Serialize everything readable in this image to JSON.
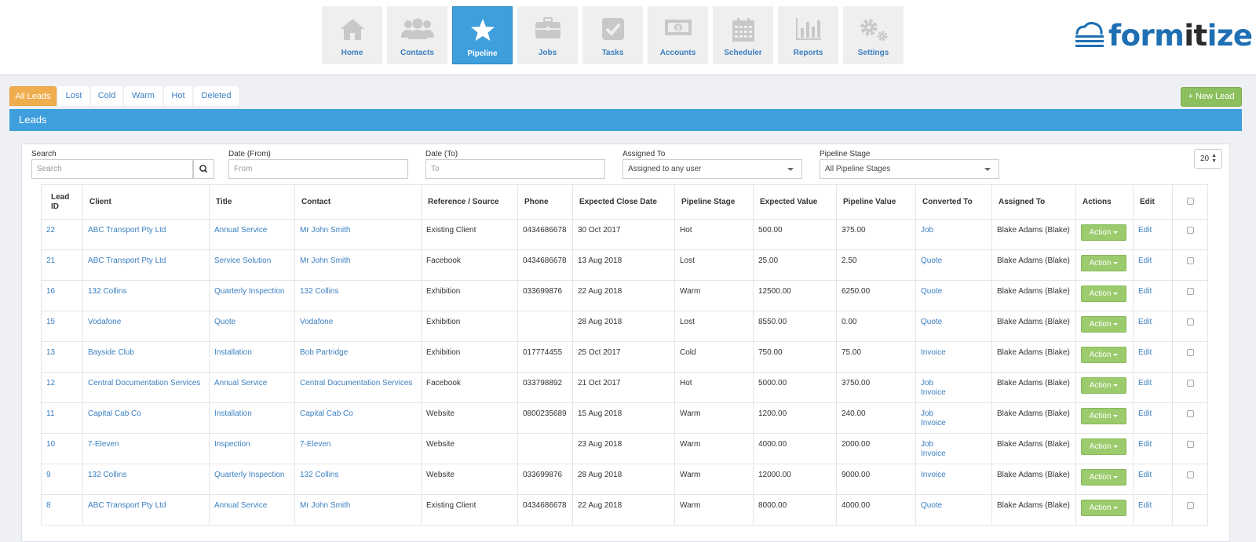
{
  "nav": {
    "items": [
      {
        "label": "Home",
        "icon": "home-icon"
      },
      {
        "label": "Contacts",
        "icon": "contacts-icon"
      },
      {
        "label": "Pipeline",
        "icon": "star-icon"
      },
      {
        "label": "Jobs",
        "icon": "briefcase-icon"
      },
      {
        "label": "Tasks",
        "icon": "checkbox-icon"
      },
      {
        "label": "Accounts",
        "icon": "money-icon"
      },
      {
        "label": "Scheduler",
        "icon": "calendar-icon"
      },
      {
        "label": "Reports",
        "icon": "bar-chart-icon"
      },
      {
        "label": "Settings",
        "icon": "gears-icon"
      }
    ],
    "active": "Pipeline"
  },
  "logo": {
    "text_a": "form",
    "text_b": "it",
    "text_c": "ize"
  },
  "filters": {
    "tabs": [
      "All Leads",
      "Lost",
      "Cold",
      "Warm",
      "Hot",
      "Deleted"
    ],
    "active": "All Leads",
    "new_lead": "+ New Lead"
  },
  "panel": {
    "title": "Leads"
  },
  "search": {
    "search_label": "Search",
    "search_placeholder": "Search",
    "date_from_label": "Date (From)",
    "date_from_placeholder": "From",
    "date_to_label": "Date (To)",
    "date_to_placeholder": "To",
    "assigned_label": "Assigned To",
    "assigned_value": "Assigned to any user",
    "stage_label": "Pipeline Stage",
    "stage_value": "All Pipeline Stages",
    "page_size": "20"
  },
  "table": {
    "headers": [
      "Lead ID",
      "Client",
      "Title",
      "Contact",
      "Reference / Source",
      "Phone",
      "Expected Close Date",
      "Pipeline Stage",
      "Expected Value",
      "Pipeline Value",
      "Converted To",
      "Assigned To",
      "Actions",
      "Edit"
    ],
    "action_label": "Action",
    "edit_label": "Edit",
    "rows": [
      {
        "id": "22",
        "client": "ABC Transport Pty Ltd",
        "title": "Annual Service",
        "contact": "Mr John Smith",
        "source": "Existing Client",
        "phone": "0434686678",
        "close": "30 Oct 2017",
        "stage": "Hot",
        "expected": "500.00",
        "pipeline": "375.00",
        "converted": [
          "Job"
        ],
        "assigned": "Blake Adams (Blake)"
      },
      {
        "id": "21",
        "client": "ABC Transport Pty Ltd",
        "title": "Service Solution",
        "contact": "Mr John Smith",
        "source": "Facebook",
        "phone": "0434686678",
        "close": "13 Aug 2018",
        "stage": "Lost",
        "expected": "25.00",
        "pipeline": "2.50",
        "converted": [
          "Quote"
        ],
        "assigned": "Blake Adams (Blake)"
      },
      {
        "id": "16",
        "client": "132 Collins",
        "title": "Quarterly Inspection",
        "contact": "132 Collins",
        "source": "Exhibition",
        "phone": "033699876",
        "close": "22 Aug 2018",
        "stage": "Warm",
        "expected": "12500.00",
        "pipeline": "6250.00",
        "converted": [
          "Quote"
        ],
        "assigned": "Blake Adams (Blake)"
      },
      {
        "id": "15",
        "client": "Vodafone",
        "title": "Quote",
        "contact": "Vodafone",
        "source": "Exhibition",
        "phone": "",
        "close": "28 Aug 2018",
        "stage": "Lost",
        "expected": "8550.00",
        "pipeline": "0.00",
        "converted": [
          "Quote"
        ],
        "assigned": "Blake Adams (Blake)"
      },
      {
        "id": "13",
        "client": "Bayside Club",
        "title": "Installation",
        "contact": "Bob Partridge",
        "source": "Exhibition",
        "phone": "017774455",
        "close": "25 Oct 2017",
        "stage": "Cold",
        "expected": "750.00",
        "pipeline": "75.00",
        "converted": [
          "Invoice"
        ],
        "assigned": "Blake Adams (Blake)"
      },
      {
        "id": "12",
        "client": "Central Documentation Services",
        "title": "Annual Service",
        "contact": "Central Documentation Services",
        "source": "Facebook",
        "phone": "033798892",
        "close": "21 Oct 2017",
        "stage": "Hot",
        "expected": "5000.00",
        "pipeline": "3750.00",
        "converted": [
          "Job",
          "Invoice"
        ],
        "assigned": "Blake Adams (Blake)"
      },
      {
        "id": "11",
        "client": "Capital Cab Co",
        "title": "Installation",
        "contact": "Capital Cab Co",
        "source": "Website",
        "phone": "0800235689",
        "close": "15 Aug 2018",
        "stage": "Warm",
        "expected": "1200.00",
        "pipeline": "240.00",
        "converted": [
          "Job",
          "Invoice"
        ],
        "assigned": "Blake Adams (Blake)"
      },
      {
        "id": "10",
        "client": "7-Eleven",
        "title": "Inspection",
        "contact": "7-Eleven",
        "source": "Website",
        "phone": "",
        "close": "23 Aug 2018",
        "stage": "Warm",
        "expected": "4000.00",
        "pipeline": "2000.00",
        "converted": [
          "Job",
          "Invoice"
        ],
        "assigned": "Blake Adams (Blake)"
      },
      {
        "id": "9",
        "client": "132 Collins",
        "title": "Quarterly Inspection",
        "contact": "132 Collins",
        "source": "Website",
        "phone": "033699876",
        "close": "28 Aug 2018",
        "stage": "Warm",
        "expected": "12000.00",
        "pipeline": "9000.00",
        "converted": [
          "Invoice"
        ],
        "assigned": "Blake Adams (Blake)"
      },
      {
        "id": "8",
        "client": "ABC Transport Pty Ltd",
        "title": "Annual Service",
        "contact": "Mr John Smith",
        "source": "Existing Client",
        "phone": "0434686678",
        "close": "22 Aug 2018",
        "stage": "Warm",
        "expected": "8000.00",
        "pipeline": "4000.00",
        "converted": [
          "Quote"
        ],
        "assigned": "Blake Adams (Blake)"
      }
    ]
  },
  "colors": {
    "accent": "#3f9fdc",
    "active_tab": "#f0ad4e",
    "action_green": "#9ccb6e",
    "link": "#3a7fc1"
  }
}
